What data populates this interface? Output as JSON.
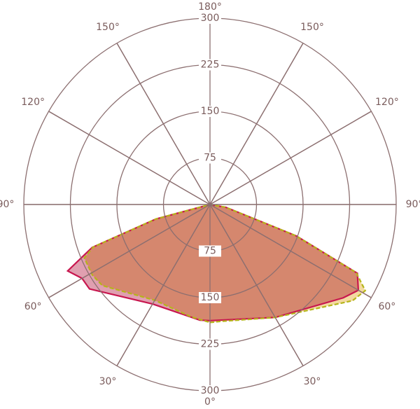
{
  "chart_data": {
    "type": "polar",
    "title": "",
    "radial_ticks": [
      "75",
      "150",
      "225",
      "300"
    ],
    "radial_max": 300,
    "angle_ticks": [
      "0°",
      "30°",
      "60°",
      "90°",
      "120°",
      "150°",
      "180°"
    ],
    "grid": true,
    "series": [
      {
        "stroke": "#c8174f",
        "fill": "#e09fb0",
        "dash": false,
        "left": [
          [
            0,
            187
          ],
          [
            5,
            187
          ],
          [
            30,
            185
          ],
          [
            55,
            237
          ],
          [
            60,
            238
          ],
          [
            65,
            253
          ],
          [
            70,
            202
          ],
          [
            75,
            90
          ],
          [
            90,
            0
          ]
        ],
        "right": [
          [
            0,
            187
          ],
          [
            30,
            210
          ],
          [
            55,
            262
          ],
          [
            60,
            276
          ],
          [
            65,
            262
          ],
          [
            70,
            148
          ],
          [
            80,
            26
          ],
          [
            90,
            0
          ]
        ]
      },
      {
        "stroke": "#b5b51a",
        "fill": "#f3d9a0",
        "dash": true,
        "left": [
          [
            0,
            190
          ],
          [
            10,
            183
          ],
          [
            30,
            178
          ],
          [
            53,
            217
          ],
          [
            59,
            221
          ],
          [
            67,
            220
          ],
          [
            70,
            200
          ],
          [
            75,
            90
          ],
          [
            90,
            0
          ]
        ],
        "right": [
          [
            0,
            190
          ],
          [
            5,
            189
          ],
          [
            30,
            210
          ],
          [
            56,
            277
          ],
          [
            61,
            286
          ],
          [
            65,
            260
          ],
          [
            70,
            147
          ],
          [
            80,
            25
          ],
          [
            90,
            0
          ]
        ]
      }
    ]
  }
}
